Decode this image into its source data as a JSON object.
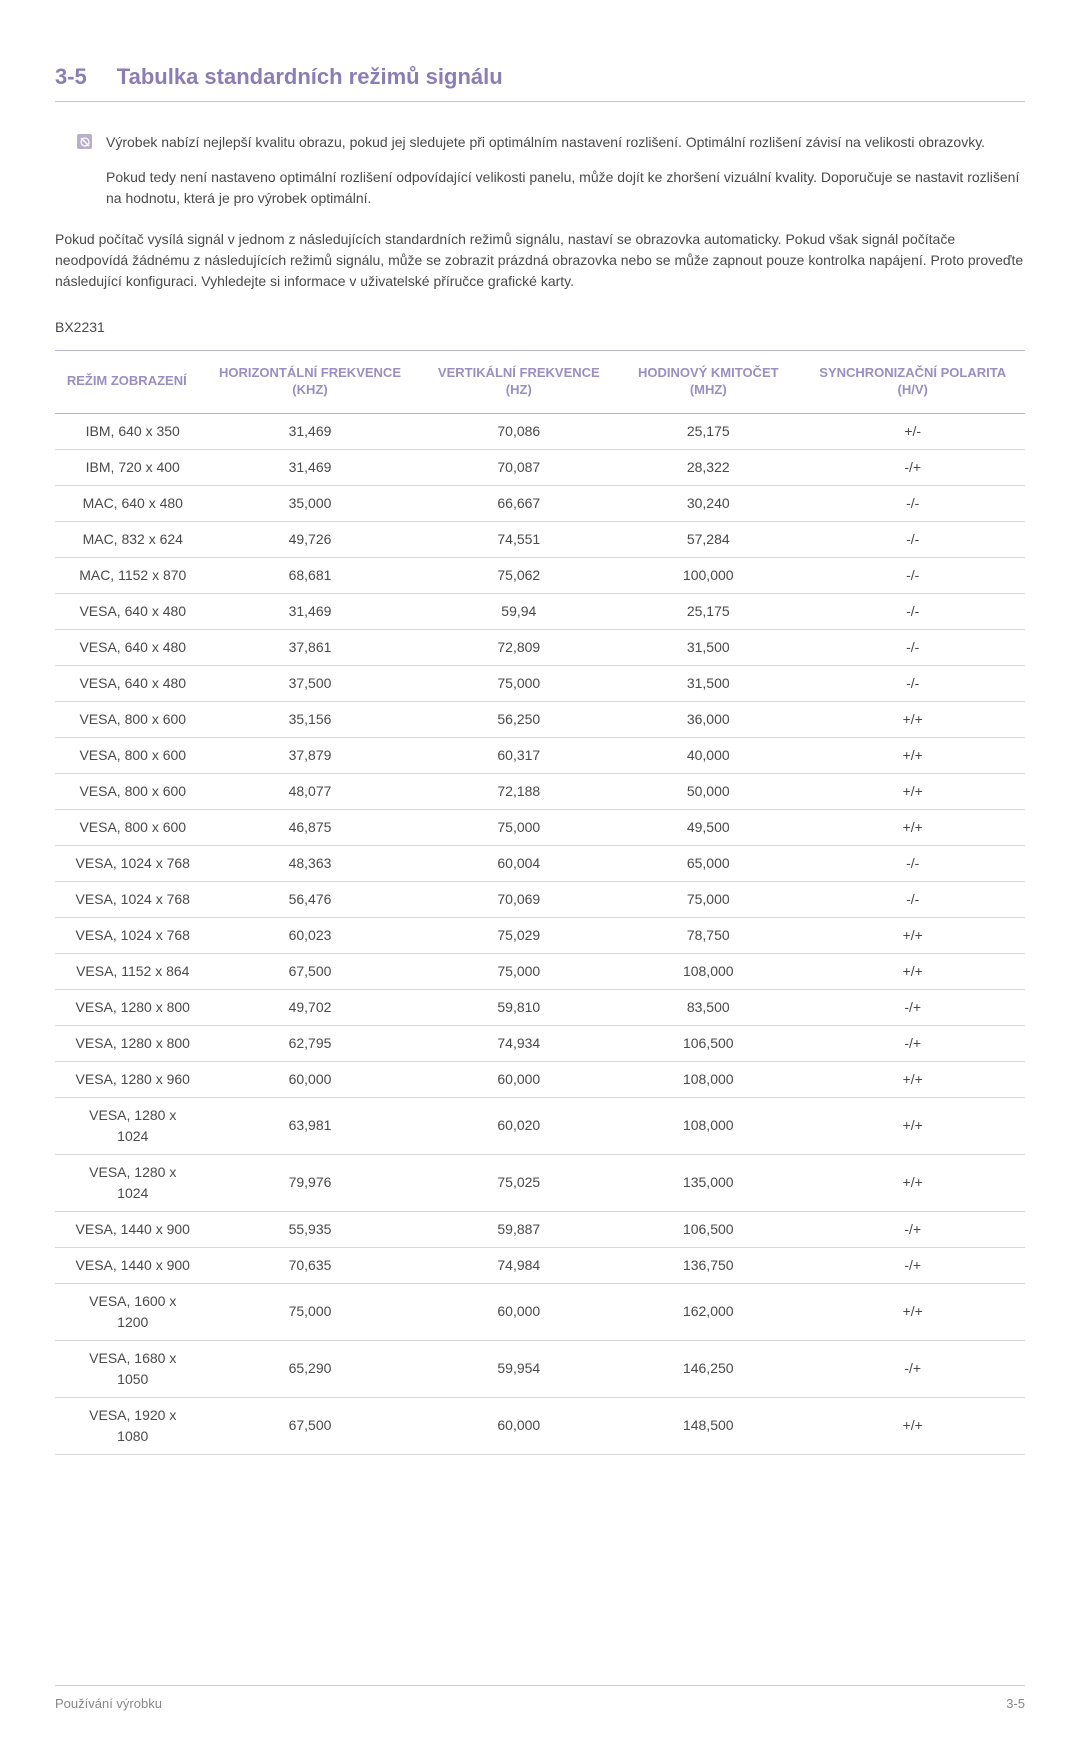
{
  "header": {
    "section_number": "3-5",
    "section_title": "Tabulka standardních režimů signálu"
  },
  "notes": {
    "note1": "Výrobek nabízí nejlepší kvalitu obrazu, pokud jej sledujete při optimálním nastavení rozlišení. Optimální rozlišení závisí na velikosti obrazovky.",
    "note2": "Pokud tedy není nastaveno optimální rozlišení odpovídající velikosti panelu, může dojít ke zhoršení vizuální kvality. Doporučuje se nastavit rozlišení na hodnotu, která je pro výrobek optimální."
  },
  "intro": "Pokud počítač vysílá signál v jednom z následujících standardních režimů signálu, nastaví se obrazovka automaticky. Pokud však signál počítače neodpovídá žádnému z následujících režimů signálu, může se zobrazit prázdná obrazovka nebo se může zapnout pouze kontrolka napájení. Proto proveďte následující konfiguraci. Vyhledejte si informace v uživatelské příručce grafické karty.",
  "model": "BX2231",
  "table": {
    "columns": [
      "REŽIM ZOBRAZENÍ",
      "HORIZONTÁLNÍ FREKVENCE (KHZ)",
      "VERTIKÁLNÍ FREKVENCE (HZ)",
      "HODINOVÝ KMITOČET (MHZ)",
      "SYNCHRONIZAČNÍ POLARITA (H/V)"
    ],
    "rows": [
      [
        "IBM, 640 x 350",
        "31,469",
        "70,086",
        "25,175",
        "+/-"
      ],
      [
        "IBM, 720 x 400",
        "31,469",
        "70,087",
        "28,322",
        "-/+"
      ],
      [
        "MAC, 640 x 480",
        "35,000",
        "66,667",
        "30,240",
        "-/-"
      ],
      [
        "MAC, 832 x 624",
        "49,726",
        "74,551",
        "57,284",
        "-/-"
      ],
      [
        "MAC, 1152 x 870",
        "68,681",
        "75,062",
        "100,000",
        "-/-"
      ],
      [
        "VESA, 640 x 480",
        "31,469",
        "59,94",
        "25,175",
        "-/-"
      ],
      [
        "VESA, 640 x 480",
        "37,861",
        "72,809",
        "31,500",
        "-/-"
      ],
      [
        "VESA, 640 x 480",
        "37,500",
        "75,000",
        "31,500",
        "-/-"
      ],
      [
        "VESA, 800 x 600",
        "35,156",
        "56,250",
        "36,000",
        "+/+"
      ],
      [
        "VESA, 800 x 600",
        "37,879",
        "60,317",
        "40,000",
        "+/+"
      ],
      [
        "VESA, 800 x 600",
        "48,077",
        "72,188",
        "50,000",
        "+/+"
      ],
      [
        "VESA, 800 x 600",
        "46,875",
        "75,000",
        "49,500",
        "+/+"
      ],
      [
        "VESA, 1024 x 768",
        "48,363",
        "60,004",
        "65,000",
        "-/-"
      ],
      [
        "VESA, 1024 x 768",
        "56,476",
        "70,069",
        "75,000",
        "-/-"
      ],
      [
        "VESA, 1024 x 768",
        "60,023",
        "75,029",
        "78,750",
        "+/+"
      ],
      [
        "VESA, 1152 x 864",
        "67,500",
        "75,000",
        "108,000",
        "+/+"
      ],
      [
        "VESA, 1280 x 800",
        "49,702",
        "59,810",
        "83,500",
        "-/+"
      ],
      [
        "VESA, 1280 x 800",
        "62,795",
        "74,934",
        "106,500",
        "-/+"
      ],
      [
        "VESA, 1280 x 960",
        "60,000",
        "60,000",
        "108,000",
        "+/+"
      ],
      [
        "VESA, 1280 x 1024",
        "63,981",
        "60,020",
        "108,000",
        "+/+"
      ],
      [
        "VESA, 1280 x 1024",
        "79,976",
        "75,025",
        "135,000",
        "+/+"
      ],
      [
        "VESA, 1440 x 900",
        "55,935",
        "59,887",
        "106,500",
        "-/+"
      ],
      [
        "VESA, 1440 x 900",
        "70,635",
        "74,984",
        "136,750",
        "-/+"
      ],
      [
        "VESA, 1600 x 1200",
        "75,000",
        "60,000",
        "162,000",
        "+/+"
      ],
      [
        "VESA, 1680 x 1050",
        "65,290",
        "59,954",
        "146,250",
        "-/+"
      ],
      [
        "VESA, 1920 x 1080",
        "67,500",
        "60,000",
        "148,500",
        "+/+"
      ]
    ]
  },
  "footer": {
    "left": "Používání výrobku",
    "right": "3-5"
  },
  "colors": {
    "accent": "#8b7eb5",
    "header_text": "#9a8fc0",
    "body_text": "#4a4a4a",
    "border_accent": "#bbb2d0",
    "border_row": "#d8d8d8",
    "icon_bg": "#b8b0c8",
    "footer_text": "#888888"
  }
}
